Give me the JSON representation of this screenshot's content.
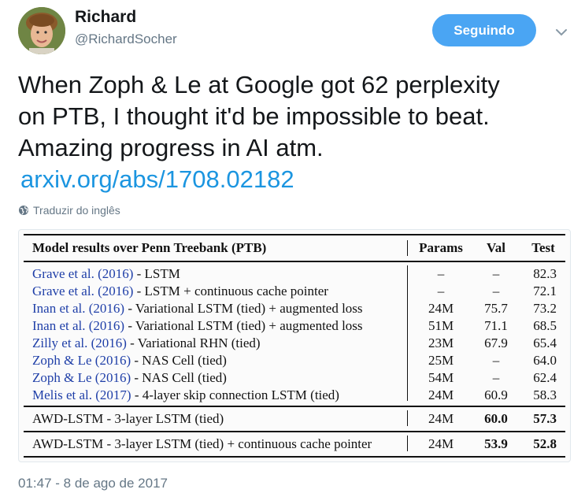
{
  "user": {
    "name": "Richard",
    "handle": "@RichardSocher",
    "follow_label": "Seguindo"
  },
  "tweet": {
    "text_lines": [
      "When Zoph & Le at Google got 62 perplexity",
      "on PTB, I thought it'd be impossible to beat.",
      "Amazing progress in AI atm."
    ],
    "link": "arxiv.org/abs/1708.02182",
    "translate_label": "Traduzir do inglês",
    "timestamp": "01:47 - 8 de ago de 2017"
  },
  "table": {
    "title": "Model results over Penn Treebank (PTB)",
    "columns": [
      "Params",
      "Val",
      "Test"
    ],
    "rows": [
      {
        "cite": "Grave et al. (2016)",
        "model": " - LSTM",
        "params": "–",
        "val": "–",
        "test": "82.3"
      },
      {
        "cite": "Grave et al. (2016)",
        "model": " - LSTM + continuous cache pointer",
        "params": "–",
        "val": "–",
        "test": "72.1"
      },
      {
        "cite": "Inan et al. (2016)",
        "model": " - Variational LSTM (tied) + augmented loss",
        "params": "24M",
        "val": "75.7",
        "test": "73.2"
      },
      {
        "cite": "Inan et al. (2016)",
        "model": " - Variational LSTM (tied) + augmented loss",
        "params": "51M",
        "val": "71.1",
        "test": "68.5"
      },
      {
        "cite": "Zilly et al. (2016)",
        "model": " - Variational RHN (tied)",
        "params": "23M",
        "val": "67.9",
        "test": "65.4"
      },
      {
        "cite": "Zoph & Le (2016)",
        "model": " - NAS Cell (tied)",
        "params": "25M",
        "val": "–",
        "test": "64.0"
      },
      {
        "cite": "Zoph & Le (2016)",
        "model": " - NAS Cell (tied)",
        "params": "54M",
        "val": "–",
        "test": "62.4"
      },
      {
        "cite": "Melis et al. (2017)",
        "model": " - 4-layer skip connection LSTM (tied)",
        "params": "24M",
        "val": "60.9",
        "test": "58.3"
      }
    ],
    "awd_rows": [
      {
        "model": "AWD-LSTM - 3-layer LSTM (tied)",
        "params": "24M",
        "val": "60.0",
        "test": "57.3"
      },
      {
        "model": "AWD-LSTM - 3-layer LSTM (tied) + continuous cache pointer",
        "params": "24M",
        "val": "53.9",
        "test": "52.8"
      }
    ]
  },
  "colors": {
    "follow_button": "#4aa5f3",
    "link": "#1b95e0",
    "muted": "#657786",
    "citation": "#1f3fa8"
  }
}
